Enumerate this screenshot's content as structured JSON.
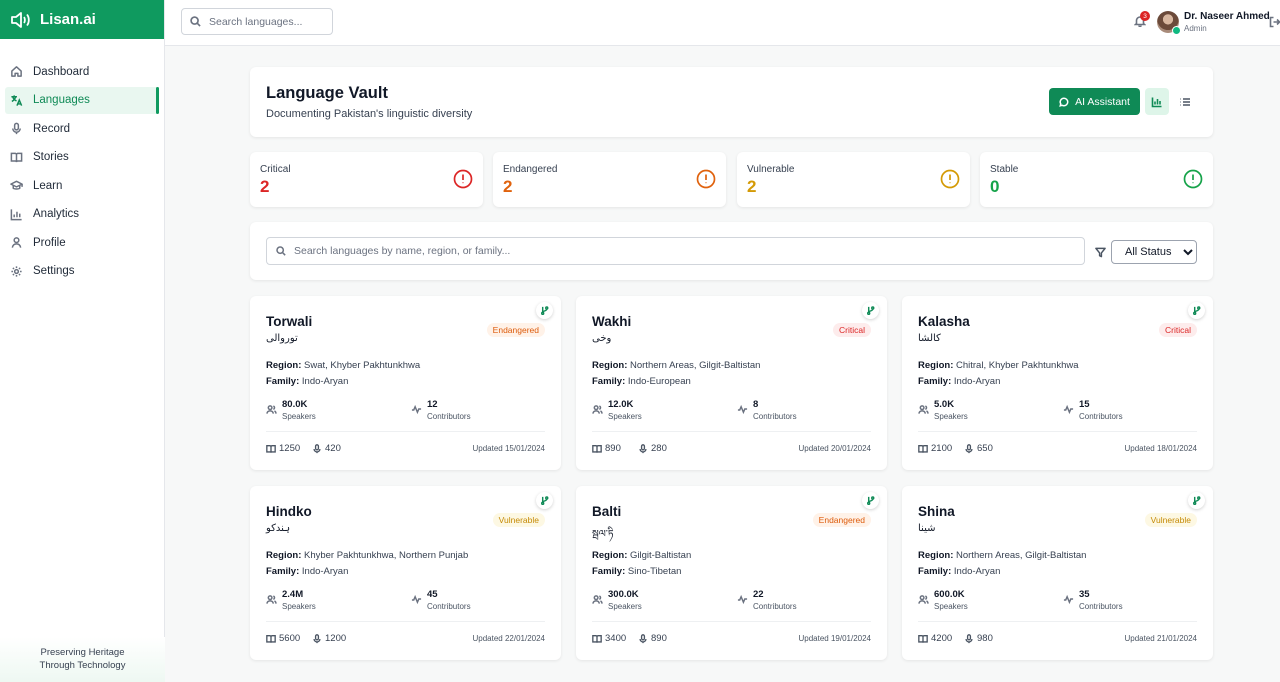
{
  "brand": {
    "name": "Lisan.ai"
  },
  "top_search": {
    "placeholder": "Search languages..."
  },
  "notifications": {
    "count": "3"
  },
  "user": {
    "name": "Dr. Naseer Ahmed",
    "role": "Admin"
  },
  "sidebar": {
    "items": [
      {
        "label": "Dashboard",
        "icon": "home-icon"
      },
      {
        "label": "Languages",
        "icon": "translate-icon",
        "active": true
      },
      {
        "label": "Record",
        "icon": "mic-icon"
      },
      {
        "label": "Stories",
        "icon": "book-icon"
      },
      {
        "label": "Learn",
        "icon": "graduation-cap-icon"
      },
      {
        "label": "Analytics",
        "icon": "bar-chart-icon"
      },
      {
        "label": "Profile",
        "icon": "user-icon"
      },
      {
        "label": "Settings",
        "icon": "gear-icon"
      }
    ],
    "footer_line1": "Preserving Heritage",
    "footer_line2": "Through Technology"
  },
  "header": {
    "title": "Language Vault",
    "subtitle": "Documenting Pakistan's linguistic diversity",
    "ai_button": "AI Assistant"
  },
  "stats": [
    {
      "label": "Critical",
      "value": "2",
      "color": "#dc2626"
    },
    {
      "label": "Endangered",
      "value": "2",
      "color": "#e0620d"
    },
    {
      "label": "Vulnerable",
      "value": "2",
      "color": "#d49a06"
    },
    {
      "label": "Stable",
      "value": "0",
      "color": "#16a34a"
    }
  ],
  "filter": {
    "placeholder": "Search languages by name, region, or family...",
    "status_value": "All Status"
  },
  "labels": {
    "region": "Region:",
    "family": "Family:",
    "speakers": "Speakers",
    "contributors": "Contributors"
  },
  "languages": [
    {
      "name": "Torwali",
      "native": "توروالی",
      "status": "Endangered",
      "region": "Swat, Khyber Pakhtunkhwa",
      "family": "Indo-Aryan",
      "speakers": "80.0K",
      "contributors": "12",
      "stories": "1250",
      "recordings": "420",
      "updated": "Updated 15/01/2024"
    },
    {
      "name": "Wakhi",
      "native": "وخی",
      "status": "Critical",
      "region": "Northern Areas, Gilgit-Baltistan",
      "family": "Indo-European",
      "speakers": "12.0K",
      "contributors": "8",
      "stories": "890",
      "recordings": "280",
      "updated": "Updated 20/01/2024"
    },
    {
      "name": "Kalasha",
      "native": "کالشا",
      "status": "Critical",
      "region": "Chitral, Khyber Pakhtunkhwa",
      "family": "Indo-Aryan",
      "speakers": "5.0K",
      "contributors": "15",
      "stories": "2100",
      "recordings": "650",
      "updated": "Updated 18/01/2024"
    },
    {
      "name": "Hindko",
      "native": "ہندکو",
      "status": "Vulnerable",
      "region": "Khyber Pakhtunkhwa, Northern Punjab",
      "family": "Indo-Aryan",
      "speakers": "2.4M",
      "contributors": "45",
      "stories": "5600",
      "recordings": "1200",
      "updated": "Updated 22/01/2024"
    },
    {
      "name": "Balti",
      "native": "སྦལ་ཏི",
      "status": "Endangered",
      "region": "Gilgit-Baltistan",
      "family": "Sino-Tibetan",
      "speakers": "300.0K",
      "contributors": "22",
      "stories": "3400",
      "recordings": "890",
      "updated": "Updated 19/01/2024"
    },
    {
      "name": "Shina",
      "native": "شینا",
      "status": "Vulnerable",
      "region": "Northern Areas, Gilgit-Baltistan",
      "family": "Indo-Aryan",
      "speakers": "600.0K",
      "contributors": "35",
      "stories": "4200",
      "recordings": "980",
      "updated": "Updated 21/01/2024"
    }
  ]
}
